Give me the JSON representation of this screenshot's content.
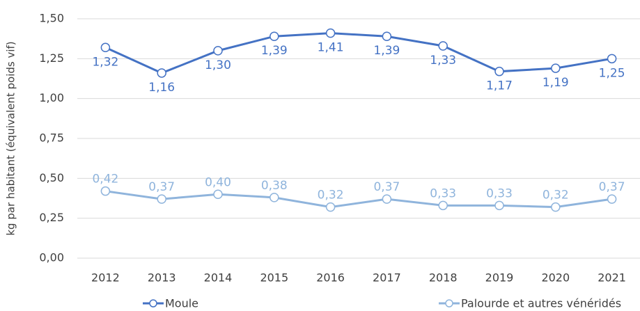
{
  "chart_data": {
    "type": "line",
    "y_label": "kg par habitant (équivalent poids vif)",
    "categories": [
      "2012",
      "2013",
      "2014",
      "2015",
      "2016",
      "2017",
      "2018",
      "2019",
      "2020",
      "2021"
    ],
    "series": [
      {
        "name": "Moule",
        "color": "#4472c4",
        "values": [
          1.32,
          1.16,
          1.3,
          1.39,
          1.41,
          1.39,
          1.33,
          1.17,
          1.19,
          1.25
        ],
        "value_labels": [
          "1,32",
          "1,16",
          "1,30",
          "1,39",
          "1,41",
          "1,39",
          "1,33",
          "1,17",
          "1,19",
          "1,25"
        ]
      },
      {
        "name": "Palourde et autres vénéridés",
        "color": "#8fb4dc",
        "values": [
          0.42,
          0.37,
          0.4,
          0.38,
          0.32,
          0.37,
          0.33,
          0.33,
          0.32,
          0.37
        ],
        "value_labels": [
          "0,42",
          "0,37",
          "0,40",
          "0,38",
          "0,32",
          "0,37",
          "0,33",
          "0,33",
          "0,32",
          "0,37"
        ]
      }
    ],
    "ylim": [
      0,
      1.5
    ],
    "yticks": [
      {
        "value": 0,
        "label": "0,00"
      },
      {
        "value": 0.25,
        "label": "0,25"
      },
      {
        "value": 0.5,
        "label": "0,50"
      },
      {
        "value": 0.75,
        "label": "0,75"
      },
      {
        "value": 1.0,
        "label": "1,00"
      },
      {
        "value": 1.25,
        "label": "1,25"
      },
      {
        "value": 1.5,
        "label": "1,50"
      }
    ],
    "grid": true,
    "legend": "bottom"
  }
}
